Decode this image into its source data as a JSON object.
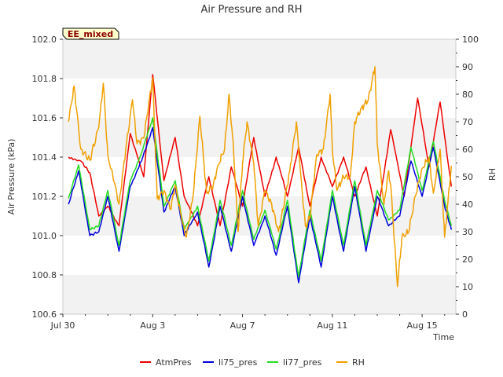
{
  "chart_data": {
    "type": "line",
    "title": "Air Pressure and RH",
    "badge": "EE_mixed",
    "xlabel": "Time",
    "ylabel_left": "Air Pressure (kPa)",
    "ylabel_right": "RH",
    "x_range_days": [
      0,
      17.5
    ],
    "x_ticks": [
      {
        "day": 0,
        "label": "Jul 30"
      },
      {
        "day": 4,
        "label": "Aug 3"
      },
      {
        "day": 8,
        "label": "Aug 7"
      },
      {
        "day": 12,
        "label": "Aug 11"
      },
      {
        "day": 16,
        "label": "Aug 15"
      }
    ],
    "y_left_range": [
      100.6,
      102.0
    ],
    "y_left_ticks": [
      "100.6",
      "100.8",
      "101.0",
      "101.2",
      "101.4",
      "101.6",
      "101.8",
      "102.0"
    ],
    "y_right_range": [
      0,
      100
    ],
    "y_right_ticks": [
      "0",
      "10",
      "20",
      "30",
      "40",
      "50",
      "60",
      "70",
      "80",
      "90",
      "100"
    ],
    "grid": "horizontal-bands",
    "legend_position": "bottom",
    "series": [
      {
        "name": "AtmPres",
        "axis": "left",
        "color": "#ee0000",
        "points": [
          [
            0.25,
            101.4
          ],
          [
            0.8,
            101.38
          ],
          [
            1.2,
            101.32
          ],
          [
            1.6,
            101.1
          ],
          [
            2.0,
            101.15
          ],
          [
            2.5,
            101.05
          ],
          [
            3.0,
            101.52
          ],
          [
            3.6,
            101.3
          ],
          [
            4.0,
            101.82
          ],
          [
            4.5,
            101.28
          ],
          [
            5.0,
            101.5
          ],
          [
            5.4,
            101.2
          ],
          [
            6.0,
            101.05
          ],
          [
            6.5,
            101.3
          ],
          [
            7.0,
            101.05
          ],
          [
            7.5,
            101.35
          ],
          [
            8.0,
            101.15
          ],
          [
            8.5,
            101.5
          ],
          [
            9.0,
            101.2
          ],
          [
            9.5,
            101.4
          ],
          [
            10.0,
            101.2
          ],
          [
            10.5,
            101.45
          ],
          [
            11.0,
            101.15
          ],
          [
            11.5,
            101.4
          ],
          [
            12.0,
            101.25
          ],
          [
            12.5,
            101.4
          ],
          [
            13.0,
            101.2
          ],
          [
            13.5,
            101.35
          ],
          [
            14.0,
            101.1
          ],
          [
            14.6,
            101.54
          ],
          [
            15.2,
            101.2
          ],
          [
            15.8,
            101.7
          ],
          [
            16.3,
            101.35
          ],
          [
            16.8,
            101.68
          ],
          [
            17.3,
            101.25
          ]
        ]
      },
      {
        "name": "li75_pres",
        "axis": "left",
        "color": "#0000dd",
        "points": [
          [
            0.25,
            101.16
          ],
          [
            0.7,
            101.33
          ],
          [
            1.2,
            101.0
          ],
          [
            1.6,
            101.02
          ],
          [
            2.0,
            101.2
          ],
          [
            2.5,
            100.92
          ],
          [
            3.0,
            101.25
          ],
          [
            3.5,
            101.38
          ],
          [
            4.0,
            101.55
          ],
          [
            4.5,
            101.12
          ],
          [
            5.0,
            101.25
          ],
          [
            5.4,
            101.0
          ],
          [
            6.0,
            101.12
          ],
          [
            6.5,
            100.84
          ],
          [
            7.0,
            101.15
          ],
          [
            7.5,
            100.92
          ],
          [
            8.0,
            101.2
          ],
          [
            8.5,
            100.95
          ],
          [
            9.0,
            101.1
          ],
          [
            9.5,
            100.9
          ],
          [
            10.0,
            101.15
          ],
          [
            10.5,
            100.76
          ],
          [
            11.0,
            101.1
          ],
          [
            11.5,
            100.84
          ],
          [
            12.0,
            101.2
          ],
          [
            12.5,
            100.92
          ],
          [
            13.0,
            101.25
          ],
          [
            13.5,
            100.92
          ],
          [
            14.0,
            101.2
          ],
          [
            14.5,
            101.05
          ],
          [
            15.0,
            101.1
          ],
          [
            15.5,
            101.38
          ],
          [
            16.0,
            101.2
          ],
          [
            16.5,
            101.45
          ],
          [
            17.0,
            101.15
          ],
          [
            17.3,
            101.03
          ]
        ]
      },
      {
        "name": "li77_pres",
        "axis": "left",
        "color": "#22dd22",
        "points": [
          [
            0.25,
            101.19
          ],
          [
            0.7,
            101.36
          ],
          [
            1.2,
            101.03
          ],
          [
            1.6,
            101.05
          ],
          [
            2.0,
            101.23
          ],
          [
            2.5,
            100.95
          ],
          [
            3.0,
            101.28
          ],
          [
            3.5,
            101.42
          ],
          [
            4.0,
            101.6
          ],
          [
            4.5,
            101.15
          ],
          [
            5.0,
            101.28
          ],
          [
            5.4,
            101.03
          ],
          [
            6.0,
            101.15
          ],
          [
            6.5,
            100.87
          ],
          [
            7.0,
            101.18
          ],
          [
            7.5,
            100.95
          ],
          [
            8.0,
            101.23
          ],
          [
            8.5,
            100.98
          ],
          [
            9.0,
            101.13
          ],
          [
            9.5,
            100.93
          ],
          [
            10.0,
            101.18
          ],
          [
            10.5,
            100.79
          ],
          [
            11.0,
            101.13
          ],
          [
            11.5,
            100.87
          ],
          [
            12.0,
            101.23
          ],
          [
            12.5,
            100.95
          ],
          [
            13.0,
            101.28
          ],
          [
            13.5,
            100.95
          ],
          [
            14.0,
            101.23
          ],
          [
            14.5,
            101.08
          ],
          [
            15.0,
            101.13
          ],
          [
            15.5,
            101.45
          ],
          [
            16.0,
            101.23
          ],
          [
            16.5,
            101.48
          ],
          [
            17.0,
            101.18
          ],
          [
            17.3,
            101.05
          ]
        ]
      },
      {
        "name": "RH",
        "axis": "right",
        "color": "#f0a000",
        "points": [
          [
            0.25,
            70
          ],
          [
            0.5,
            83
          ],
          [
            0.8,
            60
          ],
          [
            1.2,
            56
          ],
          [
            1.6,
            68
          ],
          [
            1.8,
            84
          ],
          [
            2.0,
            58
          ],
          [
            2.5,
            40
          ],
          [
            2.8,
            60
          ],
          [
            3.1,
            78
          ],
          [
            3.3,
            62
          ],
          [
            3.6,
            64
          ],
          [
            3.8,
            75
          ],
          [
            4.0,
            86
          ],
          [
            4.2,
            42
          ],
          [
            4.5,
            45
          ],
          [
            4.8,
            38
          ],
          [
            5.0,
            47
          ],
          [
            5.3,
            34
          ],
          [
            5.5,
            28
          ],
          [
            5.8,
            43
          ],
          [
            6.1,
            72
          ],
          [
            6.4,
            44
          ],
          [
            6.7,
            47
          ],
          [
            6.9,
            54
          ],
          [
            7.2,
            60
          ],
          [
            7.4,
            80
          ],
          [
            7.6,
            60
          ],
          [
            7.8,
            30
          ],
          [
            8.0,
            55
          ],
          [
            8.2,
            70
          ],
          [
            8.5,
            55
          ],
          [
            8.7,
            32
          ],
          [
            9.0,
            45
          ],
          [
            9.3,
            40
          ],
          [
            9.6,
            30
          ],
          [
            9.8,
            38
          ],
          [
            10.1,
            52
          ],
          [
            10.4,
            70
          ],
          [
            10.6,
            50
          ],
          [
            10.8,
            32
          ],
          [
            11.0,
            35
          ],
          [
            11.3,
            58
          ],
          [
            11.6,
            60
          ],
          [
            11.9,
            80
          ],
          [
            12.0,
            60
          ],
          [
            12.2,
            45
          ],
          [
            12.5,
            50
          ],
          [
            12.8,
            50
          ],
          [
            13.0,
            70
          ],
          [
            13.3,
            75
          ],
          [
            13.6,
            78
          ],
          [
            13.9,
            90
          ],
          [
            14.0,
            62
          ],
          [
            14.3,
            40
          ],
          [
            14.5,
            52
          ],
          [
            14.6,
            47
          ],
          [
            14.9,
            10
          ],
          [
            15.1,
            28
          ],
          [
            15.4,
            30
          ],
          [
            15.7,
            43
          ],
          [
            16.0,
            53
          ],
          [
            16.3,
            57
          ],
          [
            16.5,
            44
          ],
          [
            16.8,
            60
          ],
          [
            17.0,
            28
          ],
          [
            17.3,
            54
          ]
        ]
      }
    ]
  }
}
